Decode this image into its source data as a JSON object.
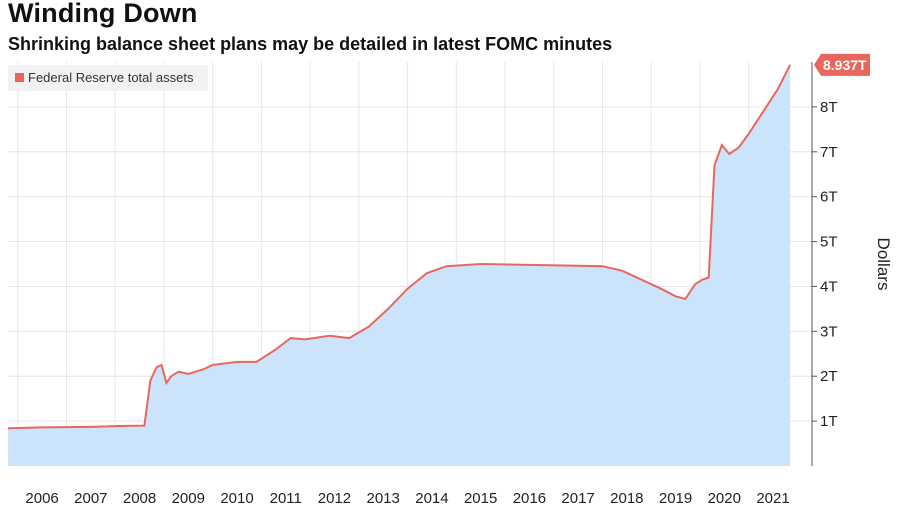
{
  "chart_data": {
    "type": "area",
    "title": "Winding Down",
    "subtitle": "Shrinking balance sheet plans may be detailed in latest FOMC minutes",
    "legend": [
      "Federal Reserve total assets"
    ],
    "ylabel": "Dollars",
    "ylim": [
      0,
      9
    ],
    "yticks": [
      "1T",
      "2T",
      "3T",
      "4T",
      "5T",
      "6T",
      "7T",
      "8T"
    ],
    "xticks": [
      "2006",
      "2007",
      "2008",
      "2009",
      "2010",
      "2011",
      "2012",
      "2013",
      "2014",
      "2015",
      "2016",
      "2017",
      "2018",
      "2019",
      "2020",
      "2021"
    ],
    "xlim": [
      2005.8,
      2022.3
    ],
    "last_value_label": "8.937T",
    "line_color": "#e8675c",
    "fill_color": "#cce4fb",
    "grid": true,
    "legend_position": "top-left",
    "series": [
      {
        "name": "Federal Reserve total assets",
        "x": [
          2005.8,
          2006.5,
          2007.5,
          2008.1,
          2008.6,
          2008.72,
          2008.85,
          2008.95,
          2009.05,
          2009.15,
          2009.3,
          2009.5,
          2009.8,
          2010.0,
          2010.5,
          2010.9,
          2011.3,
          2011.6,
          2011.9,
          2012.4,
          2012.8,
          2013.2,
          2013.6,
          2014.0,
          2014.4,
          2014.8,
          2015.5,
          2016.5,
          2017.5,
          2018.0,
          2018.4,
          2018.8,
          2019.2,
          2019.5,
          2019.7,
          2019.9,
          2020.05,
          2020.18,
          2020.3,
          2020.45,
          2020.6,
          2020.8,
          2021.0,
          2021.3,
          2021.6,
          2021.85
        ],
        "values": [
          0.84,
          0.86,
          0.87,
          0.89,
          0.9,
          1.9,
          2.2,
          2.25,
          1.85,
          2.0,
          2.1,
          2.05,
          2.15,
          2.25,
          2.32,
          2.32,
          2.6,
          2.85,
          2.82,
          2.9,
          2.85,
          3.1,
          3.5,
          3.95,
          4.3,
          4.45,
          4.5,
          4.48,
          4.46,
          4.45,
          4.35,
          4.15,
          3.95,
          3.78,
          3.72,
          4.05,
          4.15,
          4.2,
          6.7,
          7.15,
          6.95,
          7.1,
          7.4,
          7.9,
          8.4,
          8.937
        ]
      }
    ]
  }
}
